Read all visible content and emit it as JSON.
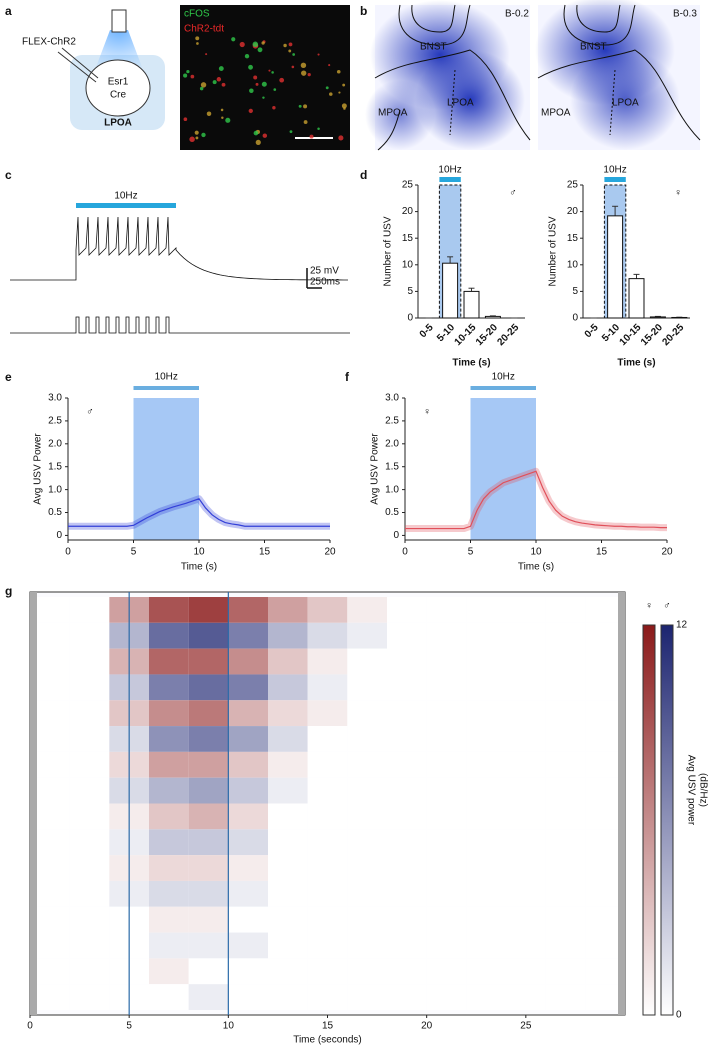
{
  "panel_labels": [
    "a",
    "b",
    "c",
    "d",
    "e",
    "f",
    "g"
  ],
  "panel_a": {
    "virus": "FLEX-ChR2",
    "cell": [
      "Esr1",
      "Cre"
    ],
    "region": "LPOA",
    "stains": [
      "cFOS",
      "ChR2-tdt"
    ]
  },
  "panel_b": {
    "sections": [
      {
        "label": "B-0.2",
        "regions": [
          "BNST",
          "MPOA",
          "LPOA"
        ]
      },
      {
        "label": "B-0.3",
        "regions": [
          "BNST",
          "MPOA",
          "LPOA"
        ]
      }
    ]
  },
  "panel_c": {
    "stim_label": "10Hz",
    "scale_v": "25 mV",
    "scale_t": "250ms"
  },
  "chart_data": [
    {
      "type": "bar",
      "symbol": "♂",
      "stim_label": "10Hz",
      "highlight_index": 1,
      "categories": [
        "0-5",
        "5-10",
        "10-15",
        "15-20",
        "20-25"
      ],
      "values": [
        0,
        10.3,
        5,
        0.3,
        0
      ],
      "errors": [
        0,
        1.2,
        0.6,
        0.1,
        0
      ],
      "color": "#ffffff",
      "ylim": [
        0,
        25
      ],
      "yticks": [
        0,
        5,
        10,
        15,
        20,
        25
      ],
      "xlabel": "Time (s)",
      "ylabel": "Number of USV"
    },
    {
      "type": "bar",
      "symbol": "♀",
      "stim_label": "10Hz",
      "highlight_index": 1,
      "categories": [
        "0-5",
        "5-10",
        "10-15",
        "15-20",
        "20-25"
      ],
      "values": [
        0,
        19.2,
        7.4,
        0.2,
        0.1
      ],
      "errors": [
        0,
        1.8,
        0.8,
        0.1,
        0.05
      ],
      "color": "#ffffff",
      "ylim": [
        0,
        25
      ],
      "yticks": [
        0,
        5,
        10,
        15,
        20,
        25
      ],
      "xlabel": "Time (s)",
      "ylabel": "Number of USV"
    },
    {
      "type": "line",
      "symbol": "♂",
      "stim_label": "10Hz",
      "stim": [
        5,
        10
      ],
      "x": [
        0,
        0.5,
        1,
        1.5,
        2,
        2.5,
        3,
        3.5,
        4,
        4.5,
        5,
        5.5,
        6,
        6.5,
        7,
        7.5,
        8,
        8.5,
        9,
        9.5,
        10,
        10.5,
        11,
        11.5,
        12,
        12.5,
        13,
        13.5,
        14,
        14.5,
        15,
        15.5,
        16,
        16.5,
        17,
        17.5,
        18,
        18.5,
        19,
        19.5,
        20
      ],
      "series": [
        {
          "color": "#3340d8",
          "values": [
            0.2,
            0.2,
            0.2,
            0.2,
            0.2,
            0.2,
            0.2,
            0.2,
            0.2,
            0.2,
            0.22,
            0.3,
            0.38,
            0.45,
            0.52,
            0.57,
            0.62,
            0.66,
            0.7,
            0.75,
            0.8,
            0.6,
            0.45,
            0.35,
            0.28,
            0.25,
            0.23,
            0.2,
            0.2,
            0.2,
            0.2,
            0.2,
            0.2,
            0.2,
            0.2,
            0.2,
            0.2,
            0.2,
            0.2,
            0.2,
            0.2
          ]
        }
      ],
      "xlim": [
        0,
        20
      ],
      "xticks": [
        0,
        5,
        10,
        15,
        20
      ],
      "ylim": [
        -0.1,
        3
      ],
      "yticks": [
        0,
        0.5,
        {
          "value": 1,
          "label": "1.0"
        },
        1.5,
        {
          "value": 2,
          "label": "2.0"
        },
        2.5,
        {
          "value": 3,
          "label": "3.0"
        }
      ],
      "xlabel": "Time (s)",
      "ylabel": "Avg USV Power"
    },
    {
      "type": "line",
      "symbol": "♀",
      "stim_label": "10Hz",
      "stim": [
        5,
        10
      ],
      "x": [
        0,
        0.5,
        1,
        1.5,
        2,
        2.5,
        3,
        3.5,
        4,
        4.5,
        5,
        5.5,
        6,
        6.5,
        7,
        7.5,
        8,
        8.5,
        9,
        9.5,
        10,
        10.5,
        11,
        11.5,
        12,
        12.5,
        13,
        13.5,
        14,
        14.5,
        15,
        15.5,
        16,
        16.5,
        17,
        17.5,
        18,
        18.5,
        19,
        19.5,
        20
      ],
      "series": [
        {
          "color": "#e0505a",
          "values": [
            0.15,
            0.15,
            0.15,
            0.15,
            0.15,
            0.15,
            0.15,
            0.15,
            0.15,
            0.15,
            0.2,
            0.55,
            0.8,
            0.95,
            1.05,
            1.15,
            1.2,
            1.25,
            1.3,
            1.35,
            1.4,
            1.05,
            0.75,
            0.55,
            0.42,
            0.35,
            0.3,
            0.27,
            0.25,
            0.23,
            0.22,
            0.21,
            0.2,
            0.2,
            0.19,
            0.19,
            0.18,
            0.18,
            0.18,
            0.17,
            0.17
          ]
        }
      ],
      "xlim": [
        0,
        20
      ],
      "xticks": [
        0,
        5,
        10,
        15,
        20
      ],
      "ylim": [
        -0.1,
        3
      ],
      "yticks": [
        0,
        0.5,
        {
          "value": 1,
          "label": "1.0"
        },
        1.5,
        {
          "value": 2,
          "label": "2.0"
        },
        2.5,
        {
          "value": 3,
          "label": "3.0"
        }
      ],
      "xlabel": "Time (s)",
      "ylabel": "Avg USV Power"
    },
    {
      "type": "heatmap",
      "xlim": [
        0,
        30
      ],
      "xticks": [
        0,
        5,
        10,
        15,
        20,
        25
      ],
      "xlabel": "Time (seconds)",
      "markers": [
        5,
        10
      ],
      "x_bins": [
        0,
        2,
        4,
        6,
        8,
        10,
        12,
        14,
        16,
        18,
        20,
        22,
        24,
        26,
        28,
        30
      ],
      "series": [
        {
          "name": "♀",
          "color": "#8b1a1a"
        },
        {
          "name": "♂",
          "color": "#1c2470"
        }
      ],
      "row_series": [
        0,
        1,
        0,
        1,
        0,
        1,
        0,
        1,
        0,
        1,
        0,
        1,
        0,
        1,
        0,
        1
      ],
      "rows": [
        [
          0,
          0,
          5,
          9,
          10,
          8,
          5,
          3,
          1,
          0,
          0,
          0,
          0,
          0,
          0
        ],
        [
          0,
          0,
          4,
          8,
          9,
          7,
          4,
          2,
          1,
          0,
          0,
          0,
          0,
          0,
          0
        ],
        [
          0,
          0,
          4,
          8,
          8,
          6,
          3,
          1,
          0,
          0,
          0,
          0,
          0,
          0,
          0
        ],
        [
          0,
          0,
          3,
          7,
          8,
          7,
          3,
          1,
          0,
          0,
          0,
          0,
          0,
          0,
          0
        ],
        [
          0,
          0,
          3,
          6,
          7,
          4,
          2,
          1,
          0,
          0,
          0,
          0,
          0,
          0,
          0
        ],
        [
          0,
          0,
          2,
          6,
          7,
          5,
          2,
          0,
          0,
          0,
          0,
          0,
          0,
          0,
          0
        ],
        [
          0,
          0,
          2,
          5,
          5,
          3,
          1,
          0,
          0,
          0,
          0,
          0,
          0,
          0,
          0
        ],
        [
          0,
          0,
          2,
          4,
          5,
          3,
          1,
          0,
          0,
          0,
          0,
          0,
          0,
          0,
          0
        ],
        [
          0,
          0,
          1,
          3,
          4,
          2,
          0,
          0,
          0,
          0,
          0,
          0,
          0,
          0,
          0
        ],
        [
          0,
          0,
          1,
          3,
          3,
          2,
          0,
          0,
          0,
          0,
          0,
          0,
          0,
          0,
          0
        ],
        [
          0,
          0,
          1,
          2,
          2,
          1,
          0,
          0,
          0,
          0,
          0,
          0,
          0,
          0,
          0
        ],
        [
          0,
          0,
          1,
          2,
          2,
          1,
          0,
          0,
          0,
          0,
          0,
          0,
          0,
          0,
          0
        ],
        [
          0,
          0,
          0,
          1,
          1,
          0,
          0,
          0,
          0,
          0,
          0,
          0,
          0,
          0,
          0
        ],
        [
          0,
          0,
          0,
          1,
          1,
          1,
          0,
          0,
          0,
          0,
          0,
          0,
          0,
          0,
          0
        ],
        [
          0,
          0,
          0,
          1,
          0,
          0,
          0,
          0,
          0,
          0,
          0,
          0,
          0,
          0,
          0
        ],
        [
          0,
          0,
          0,
          0,
          1,
          0,
          0,
          0,
          0,
          0,
          0,
          0,
          0,
          0,
          0
        ]
      ],
      "clim": [
        0,
        12
      ],
      "cticks": [
        0,
        12
      ],
      "clabel": [
        "Avg USV power",
        "(dB/Hz)"
      ]
    }
  ]
}
